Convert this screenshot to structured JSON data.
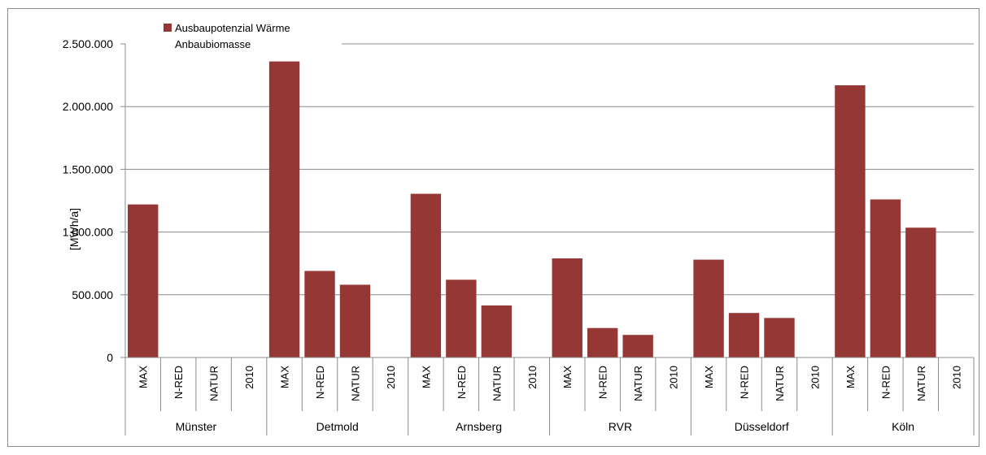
{
  "chart_data": {
    "type": "bar",
    "title": "",
    "ylabel": "[MWh/a]",
    "xlabel": "",
    "ylim": [
      0,
      2500000
    ],
    "yticks": [
      0,
      500000,
      1000000,
      1500000,
      2000000,
      2500000
    ],
    "ytick_labels": [
      "0",
      "500.000",
      "1.000.000",
      "1.500.000",
      "2.000.000",
      "2.500.000"
    ],
    "grid": true,
    "legend_position": "top-left",
    "groups": [
      {
        "name": "Münster",
        "categories": [
          "MAX",
          "N-RED",
          "NATUR",
          "2010"
        ]
      },
      {
        "name": "Detmold",
        "categories": [
          "MAX",
          "N-RED",
          "NATUR",
          "2010"
        ]
      },
      {
        "name": "Arnsberg",
        "categories": [
          "MAX",
          "N-RED",
          "NATUR",
          "2010"
        ]
      },
      {
        "name": "RVR",
        "categories": [
          "MAX",
          "N-RED",
          "NATUR",
          "2010"
        ]
      },
      {
        "name": "Düsseldorf",
        "categories": [
          "MAX",
          "N-RED",
          "NATUR",
          "2010"
        ]
      },
      {
        "name": "Köln",
        "categories": [
          "MAX",
          "N-RED",
          "NATUR",
          "2010"
        ]
      }
    ],
    "series": [
      {
        "name": "Ausbaupotenzial Wärme Anbaubiomasse",
        "legend_lines": [
          "Ausbaupotenzial Wärme",
          "Anbaubiomasse"
        ],
        "color": "#953735",
        "values": [
          1220000,
          0,
          0,
          0,
          2360000,
          690000,
          580000,
          0,
          1305000,
          620000,
          415000,
          0,
          790000,
          235000,
          180000,
          0,
          780000,
          355000,
          315000,
          0,
          2170000,
          1260000,
          1035000,
          0
        ]
      }
    ]
  }
}
